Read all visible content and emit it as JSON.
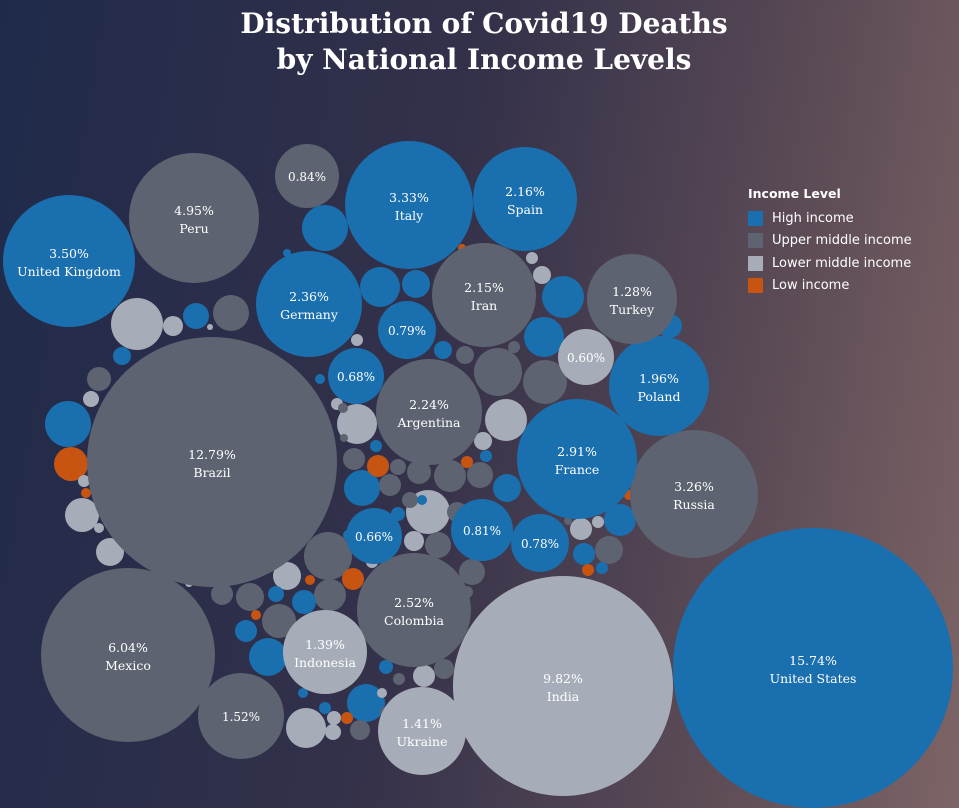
{
  "title": {
    "line1": "Distribution of Covid19 Deaths",
    "line2": "by National Income Levels"
  },
  "legend": {
    "title": "Income Level",
    "items": [
      {
        "key": "high",
        "label": "High income",
        "color": "#1a6fae"
      },
      {
        "key": "upper",
        "label": "Upper middle income",
        "color": "#5d6370"
      },
      {
        "key": "lower",
        "label": "Lower middle income",
        "color": "#a7adb8"
      },
      {
        "key": "low",
        "label": "Low income",
        "color": "#c85412"
      }
    ]
  },
  "chart_data": {
    "type": "bubble",
    "title": "Distribution of Covid19 Deaths by National Income Levels",
    "legend_position": "top-right",
    "series": [
      {
        "name": "High income",
        "key": "high",
        "color": "#1a6fae"
      },
      {
        "name": "Upper middle income",
        "key": "upper",
        "color": "#5d6370"
      },
      {
        "name": "Lower middle income",
        "key": "lower",
        "color": "#a7adb8"
      },
      {
        "name": "Low income",
        "key": "low",
        "color": "#c85412"
      }
    ],
    "labeled": [
      {
        "country": "United States",
        "share": "15.74%",
        "income": "high"
      },
      {
        "country": "Brazil",
        "share": "12.79%",
        "income": "upper"
      },
      {
        "country": "India",
        "share": "9.82%",
        "income": "lower"
      },
      {
        "country": "Mexico",
        "share": "6.04%",
        "income": "upper"
      },
      {
        "country": "Peru",
        "share": "4.95%",
        "income": "upper"
      },
      {
        "country": "United Kingdom",
        "share": "3.50%",
        "income": "high"
      },
      {
        "country": "Italy",
        "share": "3.33%",
        "income": "high"
      },
      {
        "country": "Russia",
        "share": "3.26%",
        "income": "upper"
      },
      {
        "country": "France",
        "share": "2.91%",
        "income": "high"
      },
      {
        "country": "Colombia",
        "share": "2.52%",
        "income": "upper"
      },
      {
        "country": "Germany",
        "share": "2.36%",
        "income": "high"
      },
      {
        "country": "Argentina",
        "share": "2.24%",
        "income": "upper"
      },
      {
        "country": "Spain",
        "share": "2.16%",
        "income": "high"
      },
      {
        "country": "Iran",
        "share": "2.15%",
        "income": "upper"
      },
      {
        "country": "Poland",
        "share": "1.96%",
        "income": "high"
      },
      {
        "country": "",
        "share": "1.52%",
        "income": "upper"
      },
      {
        "country": "Ukraine",
        "share": "1.41%",
        "income": "lower"
      },
      {
        "country": "Indonesia",
        "share": "1.39%",
        "income": "lower"
      },
      {
        "country": "Turkey",
        "share": "1.28%",
        "income": "upper"
      },
      {
        "country": "",
        "share": "0.84%",
        "income": "upper"
      },
      {
        "country": "",
        "share": "0.81%",
        "income": "high"
      },
      {
        "country": "",
        "share": "0.79%",
        "income": "high"
      },
      {
        "country": "",
        "share": "0.78%",
        "income": "high"
      },
      {
        "country": "",
        "share": "0.68%",
        "income": "high"
      },
      {
        "country": "",
        "share": "0.66%",
        "income": "high"
      },
      {
        "country": "",
        "share": "0.60%",
        "income": "lower"
      }
    ]
  }
}
